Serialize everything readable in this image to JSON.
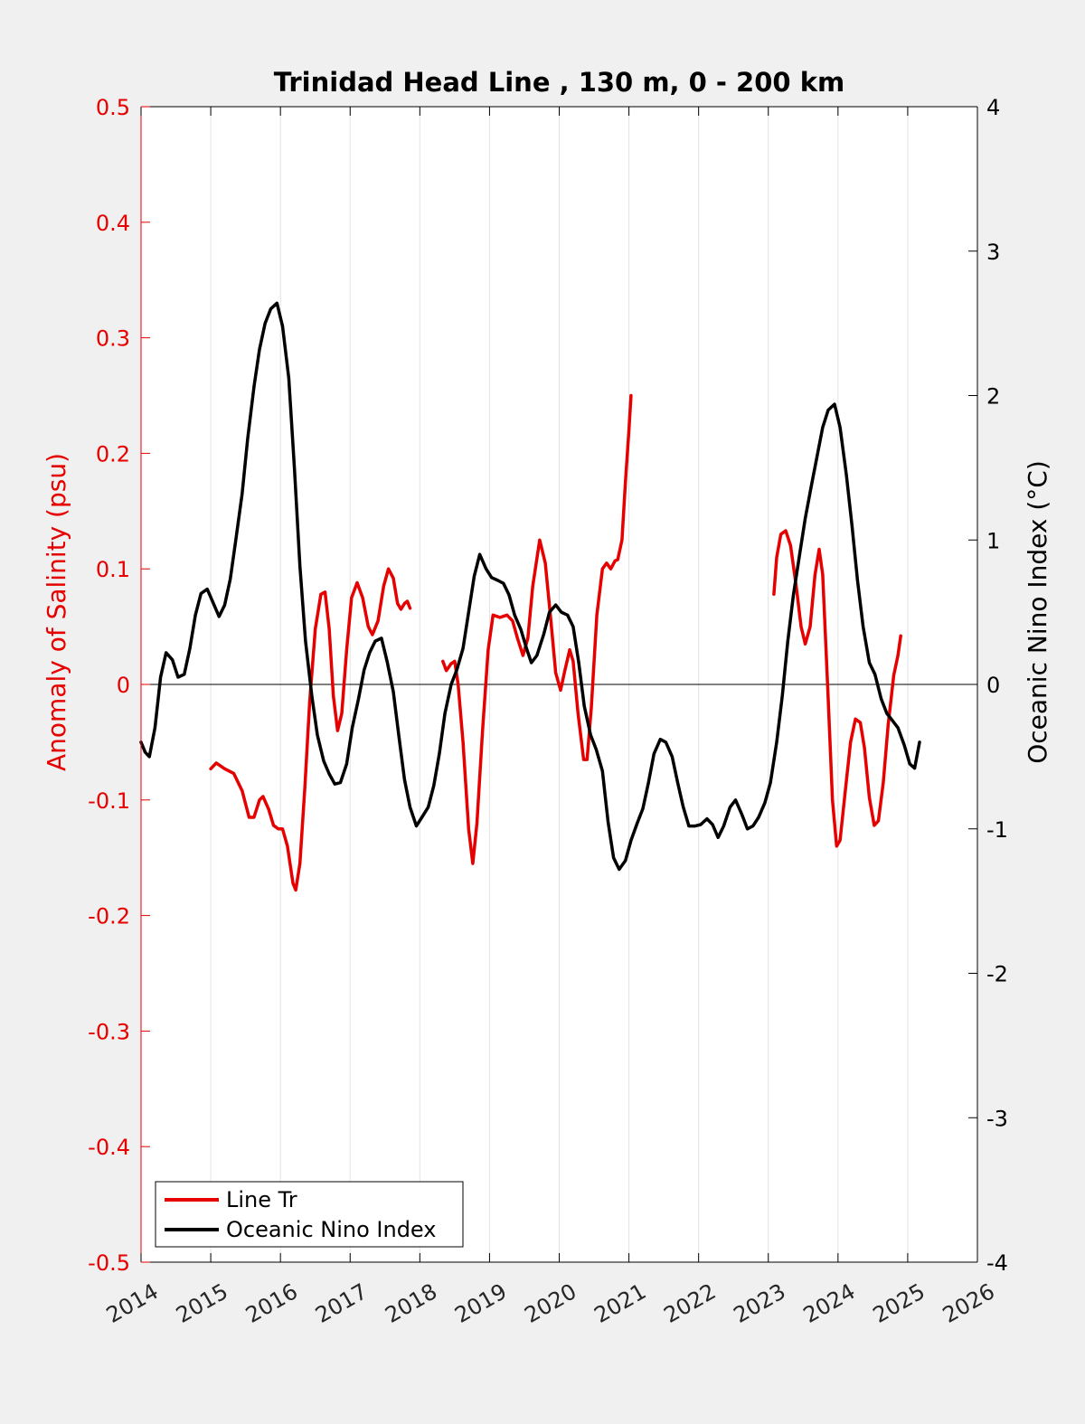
{
  "chart_data": {
    "type": "line",
    "title": "Trinidad Head Line , 130 m, 0 - 200 km",
    "ylabel_left": "Anomaly of Salinity (psu)",
    "ylabel_right": "Oceanic Nino Index (°C)",
    "xlim": [
      2014,
      2026
    ],
    "ylim_left": [
      -0.5,
      0.5
    ],
    "ylim_right": [
      -4,
      4
    ],
    "xticks": [
      "2014",
      "2015",
      "2016",
      "2017",
      "2018",
      "2019",
      "2020",
      "2021",
      "2022",
      "2023",
      "2024",
      "2025",
      "2026"
    ],
    "yticks_left": [
      "-0.5",
      "-0.4",
      "-0.3",
      "-0.2",
      "-0.1",
      "0",
      "0.1",
      "0.2",
      "0.3",
      "0.4",
      "0.5"
    ],
    "yticks_right": [
      "-4",
      "-3",
      "-2",
      "-1",
      "0",
      "1",
      "2",
      "3",
      "4"
    ],
    "grid": "vertical",
    "legend_position": "bottom-left",
    "colors": {
      "salinity": "#e60000",
      "oni": "#000000",
      "left_axis": "#e60000",
      "right_axis": "#000000"
    },
    "series": [
      {
        "name": "Line Tr",
        "axis": "left",
        "segments": [
          [
            [
              2015.0,
              -0.073
            ],
            [
              2015.08,
              -0.068
            ],
            [
              2015.2,
              -0.073
            ],
            [
              2015.33,
              -0.077
            ],
            [
              2015.45,
              -0.092
            ],
            [
              2015.55,
              -0.115
            ],
            [
              2015.62,
              -0.115
            ],
            [
              2015.7,
              -0.1
            ],
            [
              2015.75,
              -0.097
            ],
            [
              2015.83,
              -0.108
            ],
            [
              2015.9,
              -0.122
            ],
            [
              2015.97,
              -0.125
            ],
            [
              2016.03,
              -0.125
            ],
            [
              2016.1,
              -0.14
            ],
            [
              2016.18,
              -0.172
            ],
            [
              2016.22,
              -0.178
            ],
            [
              2016.28,
              -0.155
            ],
            [
              2016.35,
              -0.09
            ],
            [
              2016.42,
              -0.015
            ],
            [
              2016.5,
              0.048
            ],
            [
              2016.58,
              0.078
            ],
            [
              2016.64,
              0.08
            ],
            [
              2016.7,
              0.048
            ],
            [
              2016.76,
              -0.01
            ],
            [
              2016.82,
              -0.04
            ],
            [
              2016.88,
              -0.025
            ],
            [
              2016.95,
              0.03
            ],
            [
              2017.02,
              0.075
            ],
            [
              2017.1,
              0.088
            ],
            [
              2017.18,
              0.075
            ],
            [
              2017.26,
              0.05
            ],
            [
              2017.32,
              0.043
            ],
            [
              2017.4,
              0.055
            ],
            [
              2017.48,
              0.085
            ],
            [
              2017.55,
              0.1
            ],
            [
              2017.62,
              0.092
            ],
            [
              2017.68,
              0.07
            ],
            [
              2017.73,
              0.065
            ],
            [
              2017.78,
              0.07
            ],
            [
              2017.82,
              0.072
            ],
            [
              2017.86,
              0.066
            ]
          ],
          [
            [
              2018.33,
              0.02
            ],
            [
              2018.38,
              0.012
            ],
            [
              2018.45,
              0.018
            ],
            [
              2018.5,
              0.02
            ],
            [
              2018.55,
              0.0
            ],
            [
              2018.62,
              -0.05
            ],
            [
              2018.7,
              -0.125
            ],
            [
              2018.76,
              -0.155
            ],
            [
              2018.82,
              -0.12
            ],
            [
              2018.9,
              -0.04
            ],
            [
              2018.98,
              0.03
            ],
            [
              2019.05,
              0.06
            ],
            [
              2019.15,
              0.058
            ],
            [
              2019.25,
              0.06
            ],
            [
              2019.33,
              0.055
            ],
            [
              2019.4,
              0.04
            ],
            [
              2019.48,
              0.025
            ],
            [
              2019.55,
              0.04
            ],
            [
              2019.62,
              0.085
            ],
            [
              2019.72,
              0.125
            ],
            [
              2019.8,
              0.105
            ],
            [
              2019.88,
              0.055
            ],
            [
              2019.95,
              0.01
            ],
            [
              2020.02,
              -0.005
            ],
            [
              2020.08,
              0.012
            ],
            [
              2020.15,
              0.03
            ],
            [
              2020.2,
              0.02
            ],
            [
              2020.27,
              -0.025
            ],
            [
              2020.35,
              -0.065
            ],
            [
              2020.4,
              -0.065
            ],
            [
              2020.46,
              -0.02
            ],
            [
              2020.54,
              0.06
            ],
            [
              2020.62,
              0.1
            ],
            [
              2020.68,
              0.105
            ],
            [
              2020.74,
              0.1
            ],
            [
              2020.8,
              0.107
            ],
            [
              2020.84,
              0.108
            ],
            [
              2020.9,
              0.125
            ],
            [
              2020.95,
              0.175
            ],
            [
              2021.0,
              0.22
            ],
            [
              2021.03,
              0.25
            ]
          ],
          [
            [
              2023.08,
              0.078
            ],
            [
              2023.12,
              0.11
            ],
            [
              2023.18,
              0.13
            ],
            [
              2023.25,
              0.133
            ],
            [
              2023.32,
              0.12
            ],
            [
              2023.4,
              0.085
            ],
            [
              2023.47,
              0.05
            ],
            [
              2023.53,
              0.035
            ],
            [
              2023.6,
              0.05
            ],
            [
              2023.67,
              0.095
            ],
            [
              2023.73,
              0.117
            ],
            [
              2023.78,
              0.095
            ],
            [
              2023.85,
              0.0
            ],
            [
              2023.92,
              -0.1
            ],
            [
              2023.98,
              -0.14
            ],
            [
              2024.03,
              -0.135
            ],
            [
              2024.1,
              -0.095
            ],
            [
              2024.18,
              -0.05
            ],
            [
              2024.25,
              -0.03
            ],
            [
              2024.32,
              -0.033
            ],
            [
              2024.38,
              -0.055
            ],
            [
              2024.45,
              -0.098
            ],
            [
              2024.52,
              -0.122
            ],
            [
              2024.58,
              -0.118
            ],
            [
              2024.65,
              -0.085
            ],
            [
              2024.72,
              -0.035
            ],
            [
              2024.8,
              0.008
            ],
            [
              2024.86,
              0.025
            ],
            [
              2024.9,
              0.042
            ]
          ]
        ]
      },
      {
        "name": "Oceanic Nino Index",
        "axis": "right",
        "points": [
          [
            2014.0,
            -0.4
          ],
          [
            2014.06,
            -0.47
          ],
          [
            2014.12,
            -0.5
          ],
          [
            2014.2,
            -0.3
          ],
          [
            2014.28,
            0.05
          ],
          [
            2014.36,
            0.22
          ],
          [
            2014.45,
            0.17
          ],
          [
            2014.53,
            0.05
          ],
          [
            2014.62,
            0.07
          ],
          [
            2014.7,
            0.25
          ],
          [
            2014.78,
            0.48
          ],
          [
            2014.86,
            0.63
          ],
          [
            2014.95,
            0.66
          ],
          [
            2015.03,
            0.57
          ],
          [
            2015.12,
            0.47
          ],
          [
            2015.2,
            0.55
          ],
          [
            2015.28,
            0.73
          ],
          [
            2015.36,
            1.0
          ],
          [
            2015.45,
            1.32
          ],
          [
            2015.53,
            1.7
          ],
          [
            2015.62,
            2.06
          ],
          [
            2015.7,
            2.32
          ],
          [
            2015.78,
            2.5
          ],
          [
            2015.86,
            2.6
          ],
          [
            2015.95,
            2.64
          ],
          [
            2016.03,
            2.48
          ],
          [
            2016.12,
            2.12
          ],
          [
            2016.2,
            1.5
          ],
          [
            2016.28,
            0.82
          ],
          [
            2016.36,
            0.3
          ],
          [
            2016.45,
            -0.08
          ],
          [
            2016.53,
            -0.35
          ],
          [
            2016.62,
            -0.53
          ],
          [
            2016.7,
            -0.62
          ],
          [
            2016.78,
            -0.69
          ],
          [
            2016.86,
            -0.68
          ],
          [
            2016.95,
            -0.55
          ],
          [
            2017.03,
            -0.3
          ],
          [
            2017.12,
            -0.1
          ],
          [
            2017.2,
            0.1
          ],
          [
            2017.28,
            0.22
          ],
          [
            2017.36,
            0.3
          ],
          [
            2017.45,
            0.32
          ],
          [
            2017.53,
            0.16
          ],
          [
            2017.62,
            -0.05
          ],
          [
            2017.7,
            -0.36
          ],
          [
            2017.78,
            -0.66
          ],
          [
            2017.86,
            -0.85
          ],
          [
            2017.95,
            -0.98
          ],
          [
            2018.03,
            -0.92
          ],
          [
            2018.12,
            -0.85
          ],
          [
            2018.2,
            -0.7
          ],
          [
            2018.28,
            -0.48
          ],
          [
            2018.36,
            -0.2
          ],
          [
            2018.45,
            0.0
          ],
          [
            2018.53,
            0.1
          ],
          [
            2018.62,
            0.25
          ],
          [
            2018.7,
            0.5
          ],
          [
            2018.78,
            0.75
          ],
          [
            2018.86,
            0.9
          ],
          [
            2018.95,
            0.8
          ],
          [
            2019.03,
            0.74
          ],
          [
            2019.12,
            0.72
          ],
          [
            2019.2,
            0.7
          ],
          [
            2019.28,
            0.62
          ],
          [
            2019.36,
            0.48
          ],
          [
            2019.45,
            0.38
          ],
          [
            2019.53,
            0.25
          ],
          [
            2019.6,
            0.15
          ],
          [
            2019.68,
            0.2
          ],
          [
            2019.78,
            0.35
          ],
          [
            2019.86,
            0.5
          ],
          [
            2019.95,
            0.55
          ],
          [
            2020.03,
            0.5
          ],
          [
            2020.12,
            0.48
          ],
          [
            2020.2,
            0.4
          ],
          [
            2020.28,
            0.15
          ],
          [
            2020.36,
            -0.15
          ],
          [
            2020.45,
            -0.35
          ],
          [
            2020.53,
            -0.45
          ],
          [
            2020.62,
            -0.6
          ],
          [
            2020.7,
            -0.95
          ],
          [
            2020.78,
            -1.2
          ],
          [
            2020.86,
            -1.28
          ],
          [
            2020.95,
            -1.22
          ],
          [
            2021.03,
            -1.08
          ],
          [
            2021.12,
            -0.96
          ],
          [
            2021.2,
            -0.86
          ],
          [
            2021.28,
            -0.68
          ],
          [
            2021.36,
            -0.48
          ],
          [
            2021.45,
            -0.38
          ],
          [
            2021.53,
            -0.4
          ],
          [
            2021.62,
            -0.5
          ],
          [
            2021.7,
            -0.68
          ],
          [
            2021.78,
            -0.85
          ],
          [
            2021.86,
            -0.98
          ],
          [
            2021.95,
            -0.98
          ],
          [
            2022.03,
            -0.97
          ],
          [
            2022.12,
            -0.93
          ],
          [
            2022.2,
            -0.97
          ],
          [
            2022.28,
            -1.06
          ],
          [
            2022.36,
            -0.98
          ],
          [
            2022.45,
            -0.85
          ],
          [
            2022.53,
            -0.8
          ],
          [
            2022.62,
            -0.9
          ],
          [
            2022.7,
            -1.0
          ],
          [
            2022.78,
            -0.98
          ],
          [
            2022.86,
            -0.92
          ],
          [
            2022.95,
            -0.82
          ],
          [
            2023.03,
            -0.68
          ],
          [
            2023.12,
            -0.4
          ],
          [
            2023.2,
            -0.08
          ],
          [
            2023.28,
            0.3
          ],
          [
            2023.36,
            0.62
          ],
          [
            2023.45,
            0.9
          ],
          [
            2023.53,
            1.15
          ],
          [
            2023.62,
            1.38
          ],
          [
            2023.7,
            1.58
          ],
          [
            2023.78,
            1.78
          ],
          [
            2023.86,
            1.9
          ],
          [
            2023.95,
            1.94
          ],
          [
            2024.03,
            1.78
          ],
          [
            2024.12,
            1.45
          ],
          [
            2024.2,
            1.1
          ],
          [
            2024.28,
            0.72
          ],
          [
            2024.36,
            0.4
          ],
          [
            2024.45,
            0.15
          ],
          [
            2024.53,
            0.07
          ],
          [
            2024.62,
            -0.1
          ],
          [
            2024.7,
            -0.2
          ],
          [
            2024.78,
            -0.25
          ],
          [
            2024.86,
            -0.3
          ],
          [
            2024.95,
            -0.42
          ],
          [
            2025.03,
            -0.55
          ],
          [
            2025.1,
            -0.58
          ],
          [
            2025.17,
            -0.4
          ]
        ]
      }
    ],
    "legend": [
      "Line Tr",
      "Oceanic Nino Index"
    ]
  }
}
